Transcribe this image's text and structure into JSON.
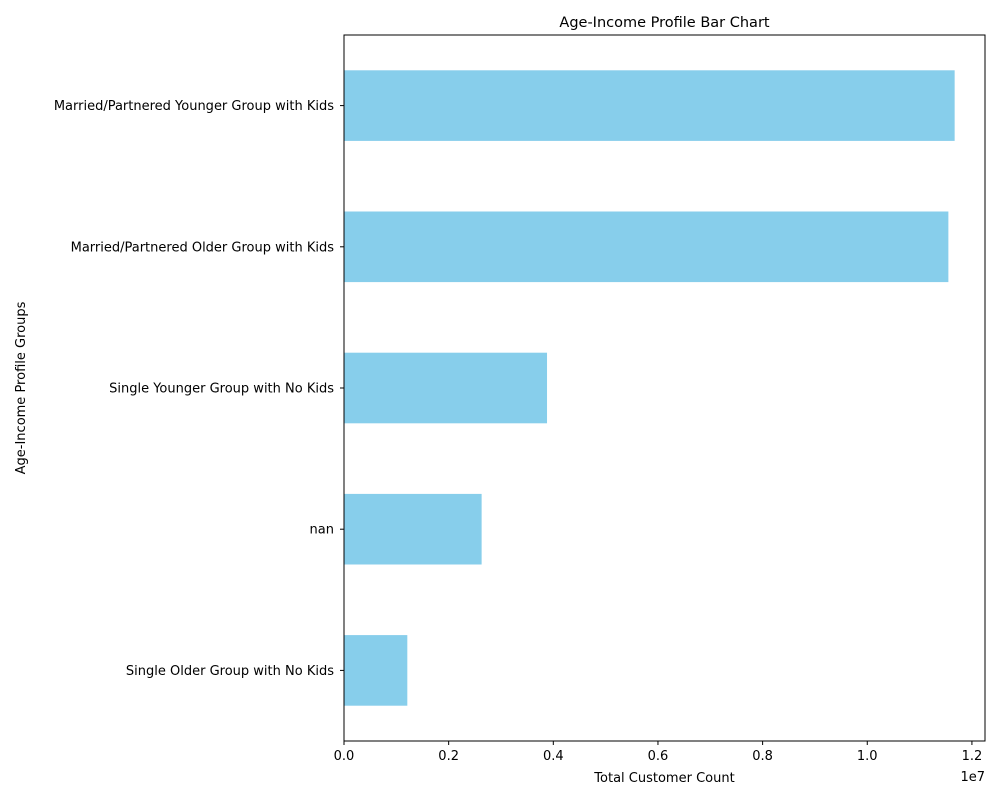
{
  "chart_data": {
    "type": "bar",
    "orientation": "horizontal",
    "title": "Age-Income Profile Bar Chart",
    "xlabel": "Total Customer Count",
    "ylabel": "Age-Income Profile Groups",
    "x_offset_label": "1e7",
    "xlim": [
      0,
      12250000
    ],
    "x_ticks": [
      0,
      2000000,
      4000000,
      6000000,
      8000000,
      10000000,
      12000000
    ],
    "x_tick_labels": [
      "0.0",
      "0.2",
      "0.4",
      "0.6",
      "0.8",
      "1.0",
      "1.2"
    ],
    "categories": [
      "Married/Partnered Younger Group with Kids",
      "Married/Partnered Older Group with Kids",
      "Single Younger Group with No Kids",
      "nan",
      "Single Older Group with No Kids"
    ],
    "values": [
      11670000,
      11550000,
      3880000,
      2630000,
      1210000
    ],
    "bar_color": "#87CEEB",
    "grid": false,
    "legend": "none"
  }
}
